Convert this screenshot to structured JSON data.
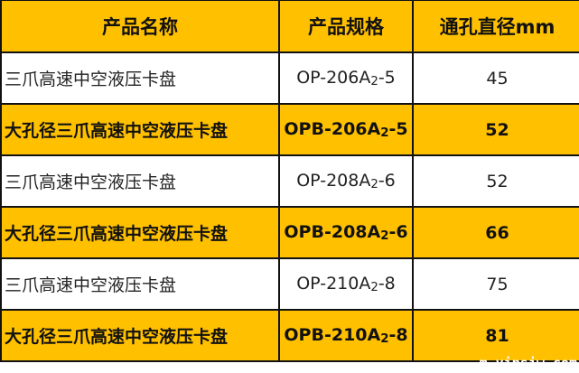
{
  "header": {
    "name": "产品名称",
    "spec": "产品规格",
    "bore": "通孔直径mm"
  },
  "highlight_color": "#FFC000",
  "rows": [
    {
      "name": "三爪高速中空液压卡盘",
      "spec_prefix": "OP-206A",
      "spec_sub": "2",
      "spec_suffix": "-5",
      "bore": "45",
      "highlight": false
    },
    {
      "name": "大孔径三爪高速中空液压卡盘",
      "spec_prefix": "OPB-206A",
      "spec_sub": "2",
      "spec_suffix": "-5",
      "bore": "52",
      "highlight": true
    },
    {
      "name": "三爪高速中空液压卡盘",
      "spec_prefix": "OP-208A",
      "spec_sub": "2",
      "spec_suffix": "-6",
      "bore": "52",
      "highlight": false
    },
    {
      "name": "大孔径三爪高速中空液压卡盘",
      "spec_prefix": "OPB-208A",
      "spec_sub": "2",
      "spec_suffix": "-6",
      "bore": "66",
      "highlight": true
    },
    {
      "name": "三爪高速中空液压卡盘",
      "spec_prefix": "OP-210A",
      "spec_sub": "2",
      "spec_suffix": "-8",
      "bore": "75",
      "highlight": false
    },
    {
      "name": "大孔径三爪高速中空液压卡盘",
      "spec_prefix": "OPB-210A",
      "spec_sub": "2",
      "spec_suffix": "-8",
      "bore": "81",
      "highlight": true
    }
  ],
  "watermark": "m.vipsjw.com"
}
